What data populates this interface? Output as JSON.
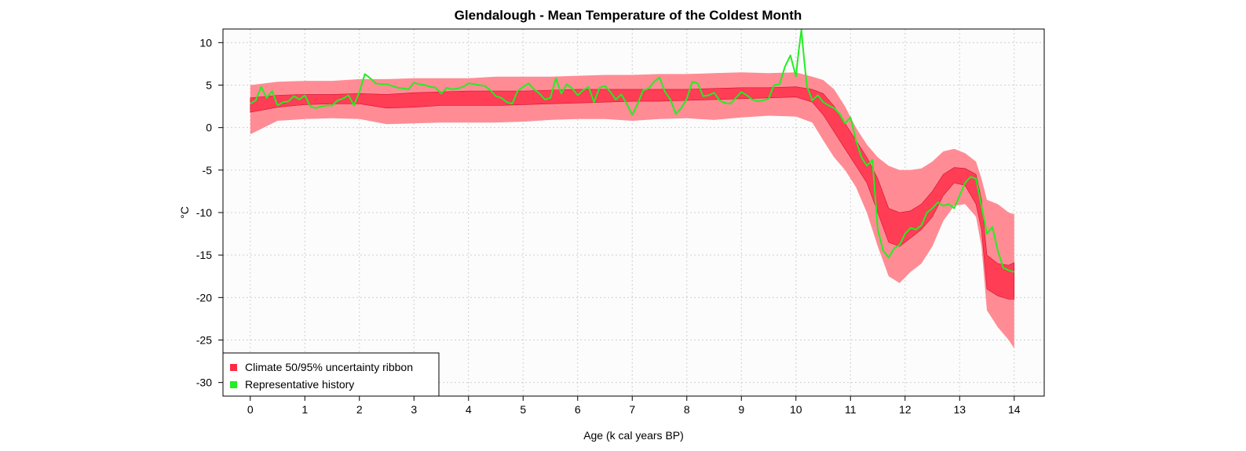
{
  "chart_data": {
    "type": "line",
    "title": "Glendalough - Mean Temperature of the Coldest Month",
    "xlabel": "Age (k cal years BP)",
    "ylabel": "°C",
    "xlim": [
      -0.5,
      14.55
    ],
    "ylim": [
      -31.6,
      11.6
    ],
    "x_ticks": [
      0,
      1,
      2,
      3,
      4,
      5,
      6,
      7,
      8,
      9,
      10,
      11,
      12,
      13,
      14
    ],
    "y_ticks": [
      10,
      5,
      0,
      -5,
      -10,
      -15,
      -20,
      -25,
      -30
    ],
    "grid": true,
    "legend_position": "bottom-left",
    "legend": [
      {
        "label": "Climate 50/95% uncertainty ribbon",
        "color": "#ff2a44"
      },
      {
        "label": "Representative history",
        "color": "#22ee22"
      }
    ],
    "colors": {
      "ribbon_95": "#ff8c94",
      "ribbon_50": "#ff3d55",
      "history": "#22ee22",
      "plot_bg": "#fcfcfc",
      "grid": "#cfcfcf"
    },
    "ribbon": {
      "x": [
        0,
        0.5,
        1,
        1.5,
        2,
        2.5,
        3,
        3.5,
        4,
        4.5,
        5,
        5.5,
        6,
        6.5,
        7,
        7.5,
        8,
        8.5,
        9,
        9.5,
        10,
        10.3,
        10.5,
        10.7,
        10.9,
        11.1,
        11.3,
        11.5,
        11.7,
        11.9,
        12.1,
        12.3,
        12.5,
        12.7,
        12.9,
        13.1,
        13.3,
        13.4,
        13.5,
        13.7,
        13.9,
        14.0
      ],
      "lo95": [
        -0.8,
        0.8,
        1.0,
        1.1,
        1.0,
        0.4,
        0.5,
        0.6,
        0.6,
        0.6,
        0.7,
        0.9,
        1.0,
        1.0,
        0.8,
        1.0,
        1.1,
        0.9,
        1.2,
        1.4,
        1.3,
        0.6,
        -1.5,
        -3.5,
        -5.0,
        -7.0,
        -10.0,
        -14.0,
        -17.5,
        -18.3,
        -17.0,
        -16.0,
        -14.0,
        -11.0,
        -9.2,
        -9.0,
        -10.5,
        -14.0,
        -21.5,
        -23.5,
        -25.0,
        -26.0
      ],
      "lo50": [
        1.8,
        2.4,
        2.7,
        2.8,
        2.8,
        2.3,
        2.4,
        2.6,
        2.6,
        2.6,
        2.7,
        2.8,
        2.9,
        3.0,
        3.1,
        3.1,
        3.2,
        3.3,
        3.4,
        3.5,
        3.6,
        3.0,
        1.5,
        -0.5,
        -2.5,
        -4.5,
        -6.5,
        -10.0,
        -13.5,
        -14.0,
        -13.0,
        -12.0,
        -10.5,
        -8.0,
        -6.5,
        -6.8,
        -9.0,
        -12.0,
        -19.0,
        -19.8,
        -20.2,
        -20.2
      ],
      "hi50": [
        3.5,
        3.8,
        3.9,
        3.9,
        4.0,
        3.9,
        4.1,
        4.2,
        4.3,
        4.3,
        4.3,
        4.4,
        4.5,
        4.5,
        4.5,
        4.5,
        4.5,
        4.6,
        4.7,
        4.7,
        4.8,
        4.5,
        4.0,
        2.5,
        0.5,
        -1.5,
        -3.5,
        -6.0,
        -9.5,
        -10.0,
        -9.8,
        -9.0,
        -7.5,
        -5.5,
        -4.7,
        -4.8,
        -5.5,
        -8.5,
        -15.0,
        -16.0,
        -16.2,
        -15.9
      ],
      "hi95": [
        5.0,
        5.4,
        5.5,
        5.5,
        5.7,
        5.7,
        5.8,
        5.8,
        5.8,
        6.0,
        6.0,
        6.0,
        6.1,
        6.2,
        6.2,
        6.3,
        6.3,
        6.4,
        6.5,
        6.4,
        6.5,
        6.0,
        5.6,
        4.5,
        2.5,
        0.0,
        -2.0,
        -3.5,
        -4.5,
        -5.0,
        -5.0,
        -4.8,
        -4.0,
        -2.8,
        -2.5,
        -3.0,
        -4.0,
        -6.0,
        -8.5,
        -9.0,
        -10.0,
        -10.2
      ]
    },
    "series": [
      {
        "name": "Representative history",
        "x": [
          0,
          0.1,
          0.2,
          0.3,
          0.4,
          0.5,
          0.6,
          0.7,
          0.8,
          0.9,
          1.0,
          1.1,
          1.2,
          1.3,
          1.4,
          1.5,
          1.6,
          1.7,
          1.8,
          1.9,
          2.0,
          2.1,
          2.2,
          2.3,
          2.4,
          2.5,
          2.6,
          2.7,
          2.8,
          2.9,
          3.0,
          3.1,
          3.2,
          3.3,
          3.4,
          3.5,
          3.6,
          3.7,
          3.8,
          3.9,
          4.0,
          4.1,
          4.2,
          4.3,
          4.4,
          4.5,
          4.6,
          4.7,
          4.8,
          4.9,
          5.0,
          5.1,
          5.2,
          5.3,
          5.4,
          5.5,
          5.6,
          5.7,
          5.8,
          5.9,
          6.0,
          6.1,
          6.2,
          6.3,
          6.4,
          6.5,
          6.6,
          6.7,
          6.8,
          6.9,
          7.0,
          7.1,
          7.2,
          7.3,
          7.4,
          7.5,
          7.6,
          7.7,
          7.8,
          7.9,
          8.0,
          8.1,
          8.2,
          8.3,
          8.4,
          8.5,
          8.6,
          8.7,
          8.8,
          8.9,
          9.0,
          9.1,
          9.2,
          9.3,
          9.4,
          9.5,
          9.6,
          9.7,
          9.8,
          9.9,
          10.0,
          10.05,
          10.1,
          10.15,
          10.2,
          10.3,
          10.4,
          10.5,
          10.6,
          10.7,
          10.8,
          10.9,
          11.0,
          11.1,
          11.2,
          11.3,
          11.4,
          11.5,
          11.6,
          11.7,
          11.8,
          11.9,
          12.0,
          12.1,
          12.2,
          12.3,
          12.4,
          12.5,
          12.6,
          12.7,
          12.8,
          12.9,
          13.0,
          13.1,
          13.2,
          13.3,
          13.4,
          13.5,
          13.6,
          13.7,
          13.8,
          13.9,
          14.0
        ],
        "values": [
          2.8,
          3.2,
          4.8,
          3.5,
          4.3,
          2.6,
          3.0,
          3.1,
          3.7,
          3.3,
          3.8,
          2.5,
          2.3,
          2.5,
          2.6,
          2.6,
          3.2,
          3.4,
          3.8,
          2.6,
          4.2,
          6.3,
          5.8,
          5.2,
          5.1,
          5.1,
          4.9,
          4.7,
          4.6,
          4.5,
          5.3,
          5.1,
          5.0,
          4.8,
          4.7,
          4.0,
          4.7,
          4.5,
          4.6,
          4.8,
          5.2,
          5.1,
          5.0,
          4.9,
          4.4,
          3.7,
          3.5,
          3.0,
          2.8,
          4.3,
          4.8,
          5.2,
          4.5,
          4.0,
          3.3,
          3.5,
          5.8,
          4.0,
          5.1,
          4.6,
          3.8,
          4.4,
          4.8,
          3.0,
          4.7,
          4.9,
          4.2,
          3.3,
          3.9,
          2.8,
          1.5,
          2.8,
          4.4,
          4.6,
          5.4,
          5.9,
          4.2,
          3.3,
          1.6,
          2.3,
          3.4,
          5.4,
          5.2,
          3.7,
          3.8,
          4.1,
          3.2,
          2.9,
          2.8,
          3.5,
          4.2,
          3.8,
          3.3,
          3.1,
          3.2,
          3.4,
          5.0,
          5.1,
          7.2,
          8.5,
          6.0,
          9.0,
          11.5,
          8.0,
          4.9,
          3.2,
          3.8,
          3.0,
          2.6,
          2.3,
          1.6,
          0.5,
          1.2,
          -1.5,
          -3.5,
          -4.5,
          -3.8,
          -12.0,
          -14.5,
          -15.3,
          -14.2,
          -13.8,
          -12.5,
          -11.8,
          -12.0,
          -11.5,
          -10.0,
          -9.5,
          -8.8,
          -9.2,
          -9.0,
          -9.5,
          -8.0,
          -6.5,
          -5.8,
          -6.0,
          -9.2,
          -12.5,
          -11.7,
          -14.5,
          -16.5,
          -16.8,
          -17.0
        ]
      }
    ]
  }
}
